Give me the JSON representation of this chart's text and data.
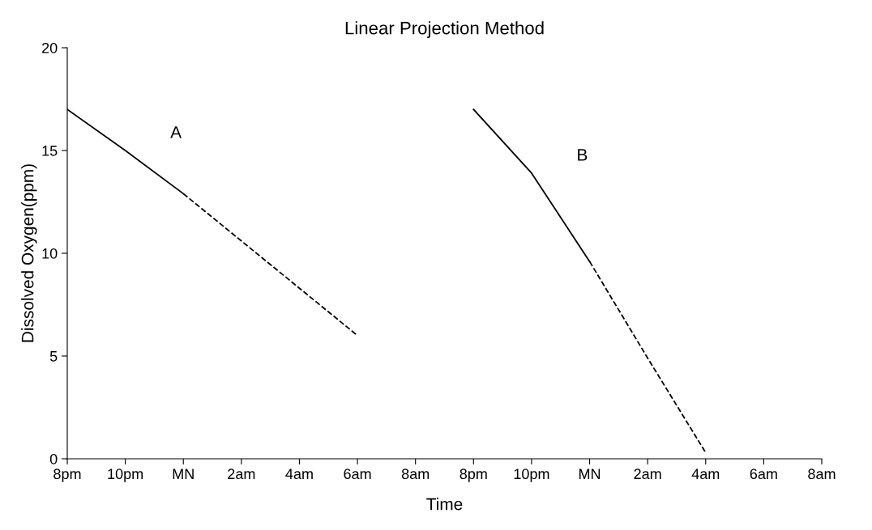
{
  "chart_data": {
    "type": "line",
    "title": "Linear Projection Method",
    "xlabel": "Time",
    "ylabel": "Dissolved Oxygen(ppm)",
    "categories": [
      "8pm",
      "10pm",
      "MN",
      "2am",
      "4am",
      "6am",
      "8am",
      "8pm",
      "10pm",
      "MN",
      "2am",
      "4am",
      "6am",
      "8am"
    ],
    "ylim": [
      0,
      20
    ],
    "yticks": [
      0,
      5,
      10,
      15,
      20
    ],
    "grid": false,
    "legend": false,
    "marker": "none",
    "series": [
      {
        "name": "A",
        "color": "#000000",
        "line_style": "solid",
        "values": [
          17,
          15.0,
          12.9,
          null,
          null,
          null,
          null,
          null,
          null,
          null,
          null,
          null,
          null,
          null
        ]
      },
      {
        "color": "#000000",
        "line_style": "dashed",
        "values": [
          null,
          null,
          12.9,
          10.6,
          8.3,
          6.0,
          null,
          null,
          null,
          null,
          null,
          null,
          null,
          null
        ]
      },
      {
        "name": "B",
        "color": "#000000",
        "line_style": "solid",
        "values": [
          null,
          null,
          null,
          null,
          null,
          null,
          null,
          17,
          13.9,
          9.6,
          null,
          null,
          null,
          null
        ]
      },
      {
        "color": "#000000",
        "line_style": "dashed",
        "values": [
          null,
          null,
          null,
          null,
          null,
          null,
          null,
          null,
          null,
          9.6,
          4.9,
          0.3,
          null,
          null
        ]
      }
    ]
  }
}
